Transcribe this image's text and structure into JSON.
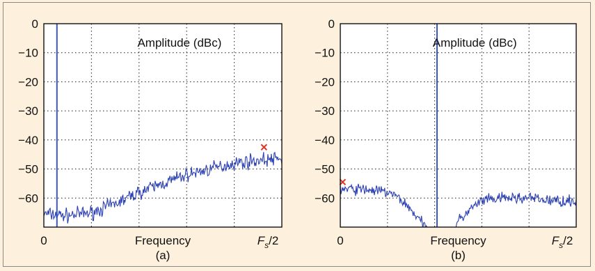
{
  "chart_data": [
    {
      "type": "line",
      "panel_label": "(a)",
      "annotation": "Amplitude (dBc)",
      "xlabel": "Frequency",
      "x_ticks": [
        {
          "value": 0,
          "label": "0",
          "italic": false
        },
        {
          "value": 1,
          "label": "F",
          "sub": "s",
          "suffix": "/2",
          "italic": true
        }
      ],
      "y_ticks": [
        {
          "value": 0,
          "label": "0"
        },
        {
          "value": -10,
          "label": "−10"
        },
        {
          "value": -20,
          "label": "−20"
        },
        {
          "value": -30,
          "label": "−30"
        },
        {
          "value": -40,
          "label": "−40"
        },
        {
          "value": -50,
          "label": "−50"
        },
        {
          "value": -60,
          "label": "−60"
        }
      ],
      "xlim": [
        0,
        1
      ],
      "ylim": [
        -70,
        0
      ],
      "grid": true,
      "carrier": {
        "x": 0.055,
        "y_top": 0,
        "y_bottom": -70
      },
      "noise_floor": {
        "x": [
          0,
          0.1,
          0.2,
          0.3,
          0.4,
          0.5,
          0.6,
          0.7,
          0.8,
          0.9,
          1.0
        ],
        "y": [
          -65.5,
          -66,
          -65,
          -62,
          -58,
          -55,
          -52,
          -50,
          -48,
          -47,
          -46.5
        ],
        "jitter_db": 1.8
      },
      "marker": {
        "x": 0.925,
        "y": -42.5,
        "symbol": "x"
      },
      "colors": {
        "trace": "#2a3fb3",
        "carrier": "#3c55c8",
        "marker": "#e03020",
        "grid": "#333333"
      }
    },
    {
      "type": "line",
      "panel_label": "(b)",
      "annotation": "Amplitude (dBc)",
      "xlabel": "Frequency",
      "x_ticks": [
        {
          "value": 0,
          "label": "0",
          "italic": false
        },
        {
          "value": 1,
          "label": "F",
          "sub": "s",
          "suffix": "/2",
          "italic": true
        }
      ],
      "y_ticks": [
        {
          "value": 0,
          "label": "0"
        },
        {
          "value": -10,
          "label": "−10"
        },
        {
          "value": -20,
          "label": "−20"
        },
        {
          "value": -30,
          "label": "−30"
        },
        {
          "value": -40,
          "label": "−40"
        },
        {
          "value": -50,
          "label": "−50"
        },
        {
          "value": -60,
          "label": "−60"
        }
      ],
      "xlim": [
        0,
        1
      ],
      "ylim": [
        -70,
        0
      ],
      "grid": true,
      "carrier": {
        "x": 0.41,
        "y_top": 0,
        "y_bottom": -70
      },
      "noise_floor": {
        "x": [
          0,
          0.1,
          0.2,
          0.25,
          0.3,
          0.34,
          0.37,
          0.4,
          0.45,
          0.48,
          0.5,
          0.55,
          0.6,
          0.7,
          0.8,
          0.9,
          1.0
        ],
        "y": [
          -57,
          -57,
          -58,
          -60,
          -64,
          -68,
          -71,
          -75,
          -75,
          -72,
          -68,
          -64,
          -61,
          -60,
          -60,
          -61,
          -61
        ],
        "jitter_db": 1.5
      },
      "marker": {
        "x": 0.01,
        "y": -54.5,
        "symbol": "x"
      },
      "colors": {
        "trace": "#2a3fb3",
        "carrier": "#3c55c8",
        "marker": "#e03020",
        "grid": "#333333"
      }
    }
  ]
}
